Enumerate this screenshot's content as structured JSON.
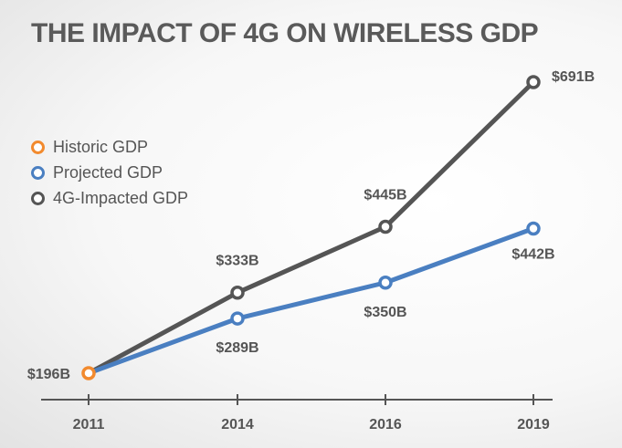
{
  "title": "THE IMPACT OF 4G ON WIRELESS GDP",
  "chart_data": {
    "type": "line",
    "title": "THE IMPACT OF 4G ON WIRELESS GDP",
    "categories": [
      "2011",
      "2014",
      "2016",
      "2019"
    ],
    "xlabel": "",
    "ylabel": "",
    "grid": false,
    "legend_position": "left",
    "ylim": [
      196,
      691
    ],
    "series": [
      {
        "name": "Historic GDP",
        "color": "#f28a2e",
        "values": [
          196,
          null,
          null,
          null
        ],
        "labels": [
          "$196B",
          null,
          null,
          null
        ]
      },
      {
        "name": "Projected GDP",
        "color": "#4a7fc1",
        "values": [
          196,
          289,
          350,
          442
        ],
        "labels": [
          null,
          "$289B",
          "$350B",
          "$442B"
        ]
      },
      {
        "name": "4G-Impacted GDP",
        "color": "#555555",
        "values": [
          196,
          333,
          445,
          691
        ],
        "labels": [
          null,
          "$333B",
          "$445B",
          "$691B"
        ]
      }
    ]
  }
}
